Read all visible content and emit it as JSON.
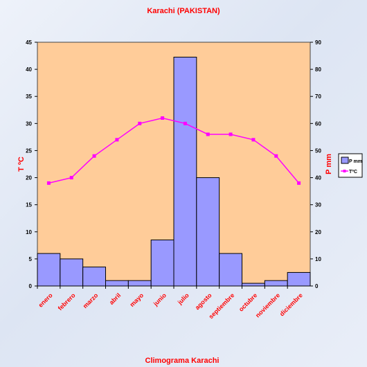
{
  "colors": {
    "plot_bg": "#ffcc99",
    "bar_fill": "#9999ff",
    "bar_stroke": "#000000",
    "line": "#ff00ff",
    "text_red": "#ff0000"
  },
  "chart_data": {
    "type": "bar+line",
    "title": "Karachi (PAKISTAN)",
    "xlabel": "Climograma Karachi",
    "ylabel_left": "T ºC",
    "ylabel_right": "P mm",
    "categories": [
      "enero",
      "febrero",
      "marzo",
      "abril",
      "mayo",
      "junio",
      "julio",
      "agosto",
      "septiembre",
      "octubre",
      "noviembre",
      "diciembre"
    ],
    "left_ticks": [
      "0",
      "5",
      "10",
      "15",
      "20",
      "25",
      "30",
      "35",
      "40",
      "45"
    ],
    "right_ticks": [
      "0",
      "10",
      "20",
      "30",
      "40",
      "50",
      "60",
      "70",
      "80",
      "90"
    ],
    "ylim_left": [
      0,
      45
    ],
    "ylim_right": [
      0,
      90
    ],
    "series": [
      {
        "name": "P mm",
        "type": "bar",
        "axis": "right",
        "values": [
          12,
          10,
          7,
          2,
          2,
          17,
          84.5,
          40,
          12,
          1,
          2,
          5
        ]
      },
      {
        "name": "TºC",
        "type": "line",
        "axis": "left",
        "values": [
          19,
          20,
          24,
          27,
          30,
          31,
          30,
          28,
          28,
          27,
          24,
          19
        ]
      }
    ],
    "legend": {
      "position": "right",
      "entries": [
        "P mm",
        "TºC"
      ]
    },
    "grid": false
  }
}
